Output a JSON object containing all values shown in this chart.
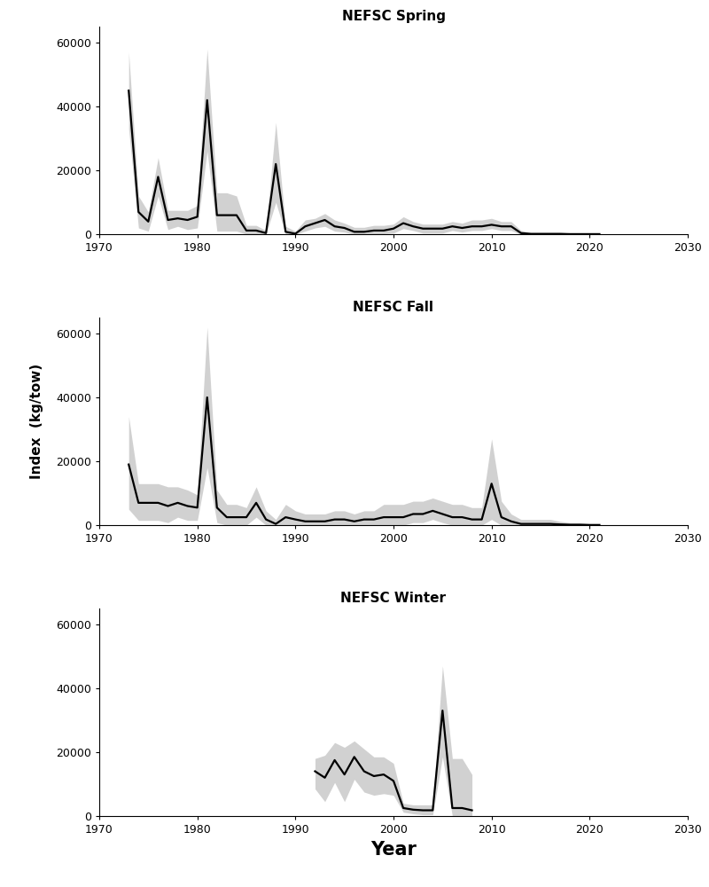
{
  "spring": {
    "title": "NEFSC Spring",
    "years": [
      1973,
      1974,
      1975,
      1976,
      1977,
      1978,
      1979,
      1980,
      1981,
      1982,
      1983,
      1984,
      1985,
      1986,
      1987,
      1988,
      1989,
      1990,
      1991,
      1992,
      1993,
      1994,
      1995,
      1996,
      1997,
      1998,
      1999,
      2000,
      2001,
      2002,
      2003,
      2004,
      2005,
      2006,
      2007,
      2008,
      2009,
      2010,
      2011,
      2012,
      2013,
      2014,
      2015,
      2016,
      2017,
      2018,
      2019,
      2020,
      2021
    ],
    "index": [
      45000,
      7000,
      4000,
      18000,
      4500,
      5000,
      4500,
      5500,
      42000,
      6000,
      6000,
      6000,
      1200,
      1200,
      400,
      22000,
      800,
      200,
      2500,
      3500,
      4500,
      2500,
      2000,
      800,
      800,
      1200,
      1200,
      1800,
      3500,
      2500,
      1800,
      1800,
      1800,
      2500,
      2000,
      2500,
      2500,
      3000,
      2500,
      2500,
      400,
      150,
      150,
      150,
      150,
      80,
      80,
      80,
      80
    ],
    "upper": [
      57000,
      12000,
      7000,
      24000,
      7500,
      7500,
      7500,
      9000,
      58000,
      13000,
      13000,
      12000,
      2800,
      2800,
      1200,
      35000,
      2500,
      1000,
      4500,
      5000,
      6500,
      4500,
      3500,
      2200,
      2200,
      2800,
      2800,
      3200,
      5500,
      4000,
      3200,
      3200,
      3200,
      4000,
      3500,
      4500,
      4500,
      5000,
      4000,
      4000,
      1200,
      600,
      600,
      600,
      600,
      400,
      400,
      400,
      400
    ],
    "lower": [
      33000,
      2000,
      1000,
      12000,
      1500,
      2500,
      1500,
      2000,
      26000,
      1000,
      1000,
      1000,
      100,
      100,
      0,
      10000,
      0,
      0,
      1000,
      2000,
      2500,
      1000,
      700,
      0,
      0,
      200,
      200,
      400,
      1800,
      1200,
      400,
      400,
      400,
      1200,
      700,
      1200,
      1200,
      1800,
      1200,
      1200,
      0,
      0,
      0,
      0,
      0,
      0,
      0,
      0,
      0
    ],
    "ylim": [
      0,
      65000
    ],
    "yticks": [
      0,
      20000,
      40000,
      60000
    ]
  },
  "fall": {
    "title": "NEFSC Fall",
    "years": [
      1973,
      1974,
      1975,
      1976,
      1977,
      1978,
      1979,
      1980,
      1981,
      1982,
      1983,
      1984,
      1985,
      1986,
      1987,
      1988,
      1989,
      1990,
      1991,
      1992,
      1993,
      1994,
      1995,
      1996,
      1997,
      1998,
      1999,
      2000,
      2001,
      2002,
      2003,
      2004,
      2005,
      2006,
      2007,
      2008,
      2009,
      2010,
      2011,
      2012,
      2013,
      2014,
      2015,
      2016,
      2017,
      2018,
      2019,
      2020,
      2021
    ],
    "index": [
      19000,
      7000,
      7000,
      7000,
      6000,
      7000,
      6000,
      5500,
      40000,
      5500,
      2500,
      2500,
      2500,
      7000,
      1800,
      400,
      2500,
      1800,
      1200,
      1200,
      1200,
      1800,
      1800,
      1200,
      1800,
      1800,
      2500,
      2500,
      2500,
      3500,
      3500,
      4500,
      3500,
      2500,
      2500,
      1800,
      1800,
      13000,
      2500,
      1200,
      400,
      400,
      400,
      400,
      250,
      150,
      150,
      80,
      80
    ],
    "upper": [
      34000,
      13000,
      13000,
      13000,
      12000,
      12000,
      11000,
      9500,
      62000,
      11000,
      6500,
      6500,
      5500,
      12000,
      4500,
      1800,
      6500,
      4500,
      3500,
      3500,
      3500,
      4500,
      4500,
      3500,
      4500,
      4500,
      6500,
      6500,
      6500,
      7500,
      7500,
      8500,
      7500,
      6500,
      6500,
      5500,
      5500,
      27000,
      7500,
      3500,
      1800,
      1800,
      1800,
      1800,
      1200,
      800,
      800,
      400,
      400
    ],
    "lower": [
      5000,
      1500,
      1500,
      1500,
      800,
      2500,
      1500,
      1500,
      18000,
      800,
      0,
      0,
      0,
      2500,
      0,
      0,
      0,
      0,
      0,
      0,
      0,
      0,
      0,
      0,
      0,
      0,
      0,
      0,
      0,
      800,
      800,
      1800,
      800,
      0,
      0,
      0,
      0,
      1800,
      0,
      0,
      0,
      0,
      0,
      0,
      0,
      0,
      0,
      0,
      0
    ],
    "ylim": [
      0,
      65000
    ],
    "yticks": [
      0,
      20000,
      40000,
      60000
    ]
  },
  "winter": {
    "title": "NEFSC Winter",
    "years": [
      1992,
      1993,
      1994,
      1995,
      1996,
      1997,
      1998,
      1999,
      2000,
      2001,
      2002,
      2003,
      2004,
      2005,
      2006,
      2007,
      2008
    ],
    "index": [
      14000,
      12000,
      17500,
      13000,
      18500,
      14000,
      12500,
      13000,
      11000,
      2500,
      2000,
      1800,
      1800,
      33000,
      2500,
      2500,
      1800
    ],
    "upper": [
      18000,
      19000,
      23000,
      21500,
      23500,
      21000,
      18500,
      18500,
      16500,
      4000,
      3500,
      3500,
      3500,
      47000,
      18000,
      18000,
      13000
    ],
    "lower": [
      8500,
      4500,
      10500,
      4500,
      11500,
      7500,
      6500,
      7000,
      6500,
      1200,
      700,
      400,
      400,
      18500,
      0,
      0,
      0
    ],
    "ylim": [
      0,
      65000
    ],
    "yticks": [
      0,
      20000,
      40000,
      60000
    ]
  },
  "xlim": [
    1970,
    2030
  ],
  "xticks": [
    1970,
    1980,
    1990,
    2000,
    2010,
    2020,
    2030
  ],
  "ylabel": "Index  (kg/tow)",
  "xlabel": "Year",
  "line_color": "#000000",
  "fill_color": "#bebebe",
  "fill_alpha": 0.7,
  "bg_color": "#ffffff",
  "line_width": 1.6
}
